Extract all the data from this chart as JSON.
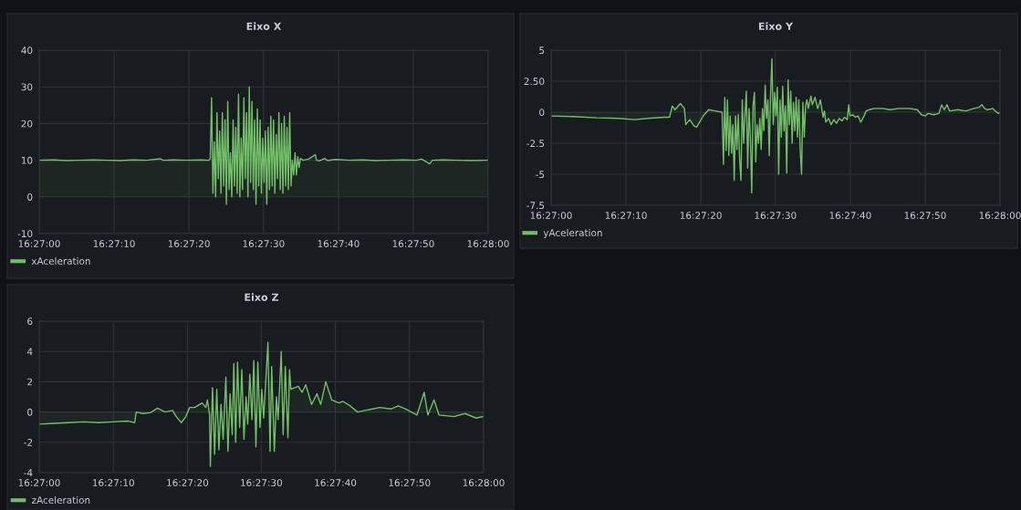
{
  "chart_data": [
    {
      "type": "area",
      "title": "Eixo X",
      "x": [
        16.45,
        16.4505,
        16.451,
        16.4515,
        16.452,
        16.4525,
        16.453,
        16.4535,
        16.454,
        16.4545,
        16.4546,
        16.455,
        16.4555,
        16.456,
        16.4563,
        16.45635,
        16.4564,
        16.45645,
        16.4565,
        16.45655,
        16.4566,
        16.45665,
        16.4567,
        16.45675,
        16.4568,
        16.45685,
        16.4569,
        16.45695,
        16.457,
        16.45705,
        16.4571,
        16.45715,
        16.4572,
        16.45725,
        16.4573,
        16.45735,
        16.4574,
        16.45745,
        16.4575,
        16.45755,
        16.4576,
        16.45765,
        16.4577,
        16.45775,
        16.4578,
        16.45785,
        16.4579,
        16.45795,
        16.458,
        16.45805,
        16.4581,
        16.45815,
        16.4582,
        16.45825,
        16.4583,
        16.45835,
        16.4584,
        16.45845,
        16.4585,
        16.45855,
        16.4586,
        16.45865,
        16.4587,
        16.45875,
        16.4588,
        16.45885,
        16.4589,
        16.45895,
        16.459,
        16.45905,
        16.4591,
        16.45915,
        16.4592,
        16.45925,
        16.4593,
        16.45935,
        16.4594,
        16.45945,
        16.4595,
        16.45955,
        16.4596,
        16.45965,
        16.4597,
        16.4598,
        16.46,
        16.46025,
        16.4603,
        16.4604,
        16.4606,
        16.4607,
        16.461,
        16.4615,
        16.462,
        16.4625,
        16.463,
        16.4635,
        16.464,
        16.4642,
        16.4645,
        16.4646,
        16.465,
        16.4655,
        16.466,
        16.46667
      ],
      "series": [
        {
          "name": "xAceleration",
          "color": "#73bf69",
          "values": [
            10.0,
            10.1,
            9.9,
            10.0,
            10.1,
            10.0,
            9.9,
            10.1,
            10.0,
            10.4,
            10.0,
            10.1,
            10.0,
            10.1,
            10.0,
            10.4,
            27,
            1,
            15,
            0,
            23,
            5,
            18,
            1,
            23,
            3,
            21,
            -2,
            26,
            2,
            12,
            0,
            21,
            3,
            19,
            1,
            28,
            0,
            16,
            2,
            27,
            5,
            23,
            0,
            30,
            4,
            26,
            2,
            21,
            -2,
            24,
            3,
            21,
            1,
            16,
            4,
            18,
            -2,
            19,
            2,
            22,
            3,
            21,
            1,
            17,
            5,
            23,
            2,
            20,
            1,
            22,
            3,
            19,
            2,
            23,
            3,
            10,
            6,
            12,
            6,
            11,
            8,
            10.5,
            10,
            10.3,
            11.5,
            10,
            9.8,
            10.5,
            9.9,
            10.2,
            10,
            10.1,
            9.9,
            10,
            10.1,
            10,
            10.3,
            9,
            10,
            10.1,
            10,
            9.9,
            10
          ]
        }
      ],
      "xlim": [
        16.45,
        16.46667
      ],
      "xticks": [
        {
          "value": 16.45,
          "label": "16:27:00"
        },
        {
          "value": 16.45278,
          "label": "16:27:10"
        },
        {
          "value": 16.45556,
          "label": "16:27:20"
        },
        {
          "value": 16.45833,
          "label": "16:27:30"
        },
        {
          "value": 16.46111,
          "label": "16:27:40"
        },
        {
          "value": 16.46389,
          "label": "16:27:50"
        },
        {
          "value": 16.46667,
          "label": "16:28:00"
        }
      ],
      "ylim": [
        -10,
        40
      ],
      "yticks": [
        -10,
        0,
        10,
        20,
        30,
        40
      ],
      "grid": true,
      "legend": "bottom left"
    },
    {
      "type": "area",
      "title": "Eixo Y",
      "x": [
        16.45,
        16.4508,
        16.4517,
        16.4525,
        16.4531,
        16.4536,
        16.4542,
        16.4544,
        16.4545,
        16.4546,
        16.4548,
        16.45495,
        16.455,
        16.45515,
        16.4553,
        16.4554,
        16.45565,
        16.45585,
        16.4561,
        16.45635,
        16.4564,
        16.45645,
        16.4565,
        16.45655,
        16.4566,
        16.45665,
        16.4567,
        16.45675,
        16.4568,
        16.45685,
        16.4569,
        16.45695,
        16.457,
        16.45705,
        16.4571,
        16.45715,
        16.4572,
        16.45725,
        16.4573,
        16.45735,
        16.4574,
        16.45745,
        16.4575,
        16.45755,
        16.4576,
        16.45765,
        16.4577,
        16.45775,
        16.4578,
        16.45785,
        16.4579,
        16.45795,
        16.458,
        16.45805,
        16.4581,
        16.45815,
        16.4582,
        16.45825,
        16.4583,
        16.45835,
        16.4584,
        16.45845,
        16.4585,
        16.45855,
        16.4586,
        16.45865,
        16.4587,
        16.45875,
        16.4588,
        16.45885,
        16.4589,
        16.45895,
        16.459,
        16.45905,
        16.4591,
        16.45915,
        16.4592,
        16.45925,
        16.4593,
        16.45935,
        16.4594,
        16.45945,
        16.4595,
        16.45955,
        16.4596,
        16.45965,
        16.4597,
        16.4598,
        16.4599,
        16.46,
        16.4601,
        16.46015,
        16.4602,
        16.4603,
        16.4604,
        16.4605,
        16.4606,
        16.4607,
        16.4608,
        16.4609,
        16.461,
        16.46105,
        16.4611,
        16.4612,
        16.4613,
        16.4614,
        16.4615,
        16.4616,
        16.4617,
        16.4618,
        16.462,
        16.4623,
        16.4626,
        16.4629,
        16.4633,
        16.4636,
        16.46375,
        16.4639,
        16.464,
        16.4642,
        16.4644,
        16.4645,
        16.4646,
        16.4647,
        16.4648,
        16.4651,
        16.4654,
        16.4657,
        16.4659,
        16.466,
        16.4661,
        16.4662,
        16.4664,
        16.4665,
        16.4666,
        16.46667
      ],
      "series": [
        {
          "name": "yAceleration",
          "color": "#73bf69",
          "values": [
            -0.3,
            -0.35,
            -0.45,
            -0.5,
            -0.6,
            -0.5,
            -0.4,
            -0.4,
            0.5,
            0.2,
            0.7,
            0.3,
            -1,
            -0.6,
            -1.1,
            -1.2,
            -0.3,
            0.2,
            0.1,
            0,
            -4.2,
            1.2,
            -3.1,
            1.0,
            -3.5,
            -0.3,
            -3.3,
            -1.0,
            -5.5,
            -0.3,
            -3.0,
            -0.2,
            -3.8,
            -5.5,
            1.0,
            -2.5,
            -0.3,
            1.7,
            -4.5,
            0.3,
            -2.0,
            -6.5,
            0.5,
            1.6,
            -4.0,
            -1.0,
            -2.5,
            -0.5,
            -3.0,
            0.3,
            -1.5,
            2.2,
            -0.5,
            1.0,
            -3.5,
            1.5,
            4.3,
            -1.0,
            1.6,
            -0.3,
            2.0,
            -5.0,
            1.0,
            -2.0,
            2.1,
            -1.5,
            0.5,
            -4.9,
            2.6,
            -1.0,
            1.7,
            -2.5,
            0.8,
            -1.5,
            1.2,
            -2.0,
            1.0,
            -3.0,
            -5.0,
            0.8,
            -2.0,
            0.5,
            1.0,
            0.3,
            0.8,
            1.3,
            0.6,
            1.2,
            0.3,
            1.0,
            -0.4,
            0.1,
            -0.8,
            -0.5,
            -1.0,
            -0.6,
            -0.9,
            -0.5,
            -0.7,
            -0.4,
            -0.6,
            0.6,
            -0.3,
            -0.2,
            -0.4,
            -0.3,
            -0.8,
            -0.4,
            0.1,
            0.2,
            0.3,
            0.3,
            0.2,
            0.3,
            0.3,
            0.2,
            -0.2,
            -0.3,
            -0.1,
            -0.2,
            -0.1,
            0.6,
            0.2,
            0.6,
            0.1,
            0.2,
            0.1,
            0.3,
            0.4,
            0.6,
            0.3,
            0.2,
            0.3,
            0.1,
            -0.1,
            0
          ]
        }
      ],
      "xlim": [
        16.45,
        16.46667
      ],
      "xticks": [
        {
          "value": 16.45,
          "label": "16:27:00"
        },
        {
          "value": 16.45278,
          "label": "16:27:10"
        },
        {
          "value": 16.45556,
          "label": "16:27:20"
        },
        {
          "value": 16.45833,
          "label": "16:27:30"
        },
        {
          "value": 16.46111,
          "label": "16:27:40"
        },
        {
          "value": 16.46389,
          "label": "16:27:50"
        },
        {
          "value": 16.46667,
          "label": "16:28:00"
        }
      ],
      "ylim": [
        -7.5,
        5
      ],
      "yticks": [
        -7.5,
        -5,
        -2.5,
        0,
        {
          "value": 2.5,
          "label": "2.50"
        },
        5
      ],
      "grid": true,
      "legend": "bottom left"
    },
    {
      "type": "area",
      "title": "Eixo Z",
      "x": [
        16.45,
        16.45056,
        16.45111,
        16.45167,
        16.45222,
        16.45278,
        16.45333,
        16.45358,
        16.45364,
        16.45389,
        16.45417,
        16.45444,
        16.45472,
        16.455,
        16.45514,
        16.45533,
        16.4555,
        16.45564,
        16.45583,
        16.45611,
        16.45625,
        16.45631,
        16.45639,
        16.45642,
        16.4565,
        16.45658,
        16.45666,
        16.45674,
        16.45682,
        16.4569,
        16.457,
        16.45708,
        16.45716,
        16.45724,
        16.4573,
        16.45737,
        16.45744,
        16.45752,
        16.4576,
        16.45768,
        16.45776,
        16.45782,
        16.4579,
        16.45798,
        16.45805,
        16.45813,
        16.4582,
        16.45828,
        16.45835,
        16.45842,
        16.45858,
        16.45866,
        16.45872,
        16.45882,
        16.4589,
        16.45896,
        16.45908,
        16.45915,
        16.45923,
        16.45933,
        16.45939,
        16.45944,
        16.45972,
        16.45986,
        16.46,
        16.46022,
        16.46042,
        16.46056,
        16.46075,
        16.46097,
        16.46125,
        16.46139,
        16.46167,
        16.46194,
        16.46222,
        16.4625,
        16.46278,
        16.46319,
        16.46347,
        16.46375,
        16.46417,
        16.46444,
        16.46458,
        16.46481,
        16.465,
        16.46556,
        16.46597,
        16.46639,
        16.46667
      ],
      "series": [
        {
          "name": "zAceleration",
          "color": "#73bf69",
          "values": [
            -0.8,
            -0.75,
            -0.7,
            -0.65,
            -0.7,
            -0.65,
            -0.6,
            -0.7,
            0,
            -0.1,
            -0.05,
            0.25,
            0,
            0.1,
            -0.3,
            -0.7,
            -0.3,
            0.3,
            0.3,
            0.6,
            0.3,
            0.8,
            -0.2,
            -3.6,
            1.6,
            -2.8,
            1.5,
            -2.5,
            0.5,
            -1.8,
            2.3,
            -2.6,
            1.2,
            -1.5,
            3.2,
            -2.0,
            3.3,
            -1.0,
            2.8,
            -1.8,
            1.0,
            -0.8,
            2.5,
            -0.5,
            3.4,
            -2.3,
            3.3,
            -1.0,
            1.5,
            -0.4,
            4.6,
            -2.6,
            3.0,
            -2.6,
            1.0,
            -0.5,
            4.0,
            -1.5,
            3.0,
            -1.7,
            2.8,
            1.5,
            1.7,
            1.3,
            1.8,
            0.5,
            1.2,
            0.5,
            2.0,
            0.8,
            0.6,
            0.7,
            0.4,
            0.0,
            0.1,
            0.2,
            0.3,
            0.2,
            0.4,
            0.2,
            -0.2,
            1.3,
            -0.2,
            0.8,
            -0.2,
            -0.3,
            -0.1,
            -0.4,
            -0.3
          ]
        }
      ],
      "xlim": [
        16.45,
        16.46667
      ],
      "xticks": [
        {
          "value": 16.45,
          "label": "16:27:00"
        },
        {
          "value": 16.45278,
          "label": "16:27:10"
        },
        {
          "value": 16.45556,
          "label": "16:27:20"
        },
        {
          "value": 16.45833,
          "label": "16:27:30"
        },
        {
          "value": 16.46111,
          "label": "16:27:40"
        },
        {
          "value": 16.46389,
          "label": "16:27:50"
        },
        {
          "value": 16.46667,
          "label": "16:28:00"
        }
      ],
      "ylim": [
        -4,
        6
      ],
      "yticks": [
        -4,
        -2,
        0,
        2,
        4,
        6
      ],
      "grid": true,
      "legend": "bottom left"
    }
  ]
}
